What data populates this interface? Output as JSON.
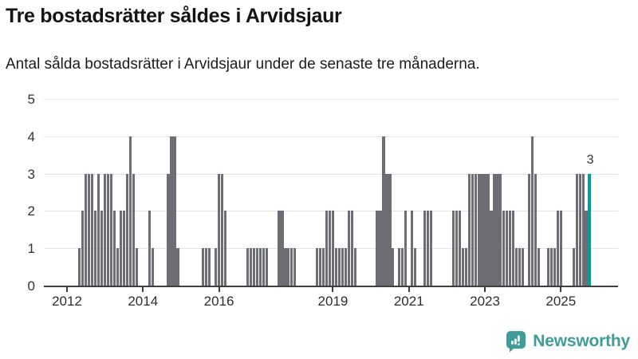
{
  "header": {
    "title": "Tre bostadsrätter såldes i Arvidsjaur",
    "subtitle": "Antal sålda bostadsrätter i Arvidsjaur under de senaste tre månaderna."
  },
  "chart_data": {
    "type": "bar",
    "title": "Tre bostadsrätter såldes i Arvidsjaur",
    "subtitle": "Antal sålda bostadsrätter i Arvidsjaur under de senaste tre månaderna.",
    "x_unit": "month",
    "start_month": "2012-05",
    "values": [
      1,
      2,
      3,
      3,
      3,
      2,
      3,
      2,
      3,
      3,
      3,
      2,
      1,
      2,
      2,
      3,
      4,
      3,
      1,
      0,
      0,
      0,
      2,
      1,
      0,
      0,
      0,
      0,
      3,
      4,
      4,
      1,
      0,
      0,
      0,
      0,
      0,
      0,
      0,
      1,
      1,
      1,
      0,
      1,
      3,
      3,
      2,
      0,
      0,
      0,
      0,
      0,
      0,
      1,
      1,
      1,
      1,
      1,
      1,
      1,
      0,
      0,
      0,
      2,
      2,
      1,
      1,
      1,
      1,
      0,
      0,
      0,
      0,
      0,
      0,
      1,
      1,
      1,
      2,
      2,
      2,
      1,
      1,
      1,
      1,
      2,
      2,
      1,
      0,
      0,
      0,
      0,
      0,
      0,
      2,
      2,
      4,
      3,
      3,
      1,
      0,
      1,
      1,
      2,
      0,
      2,
      1,
      0,
      0,
      2,
      2,
      2,
      0,
      0,
      0,
      0,
      0,
      0,
      2,
      2,
      2,
      1,
      1,
      3,
      3,
      3,
      3,
      3,
      3,
      3,
      2,
      3,
      3,
      3,
      2,
      2,
      2,
      2,
      1,
      1,
      1,
      0,
      3,
      4,
      3,
      1,
      0,
      0,
      1,
      1,
      1,
      2,
      2,
      0,
      0,
      0,
      1,
      3,
      3,
      3,
      2,
      3
    ],
    "highlight_last": true,
    "annotation": {
      "text": "3"
    },
    "xticks": [
      2012,
      2014,
      2016,
      2019,
      2021,
      2023,
      2025
    ],
    "yticks": [
      0,
      1,
      2,
      3,
      4,
      5
    ],
    "ylim": [
      0,
      5
    ],
    "grid": "horizontal",
    "legend": "none",
    "colors": {
      "bar": "#6d6d75",
      "highlight": "#00a09a",
      "gridline": "#e3e3e3",
      "axis": "#3f3f3f"
    }
  },
  "logo": {
    "text": "Newsworthy",
    "color": "#3f9c96",
    "icon": "bar-chart-speech-bubble-icon"
  }
}
